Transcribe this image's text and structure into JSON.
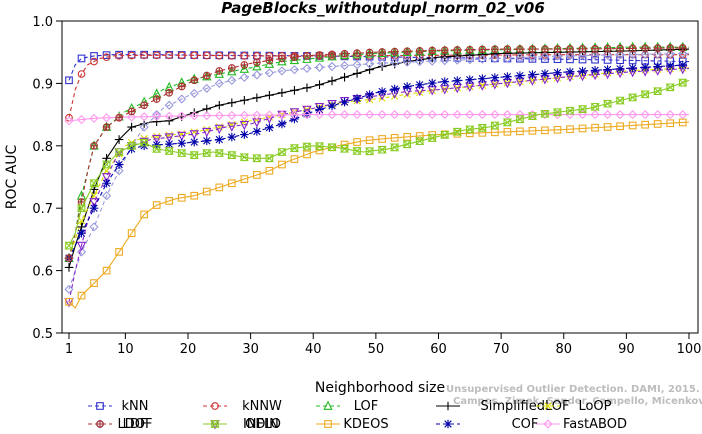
{
  "chart_data": {
    "type": "line",
    "title": "PageBlocks_withoutdupl_norm_02_v06",
    "xlabel": "Neighborhood size",
    "ylabel": "ROC AUC",
    "xlim": [
      1,
      100
    ],
    "ylim": [
      0.5,
      1.0
    ],
    "x_ticks": [
      1,
      10,
      20,
      30,
      40,
      50,
      60,
      70,
      80,
      90,
      100
    ],
    "y_ticks": [
      0.5,
      0.6,
      0.7,
      0.8,
      0.9,
      1.0
    ],
    "grid": false,
    "legend_position": "bottom",
    "credit": [
      "Unsupervised Outlier Detection. DAMI, 2015.",
      "Campos, Zimek, Sander, Campello, Micenkova, Schubert, Assent, Houle"
    ],
    "series": [
      {
        "name": "kNN",
        "color": "#3333cc",
        "marker": "square",
        "dash": "4,3",
        "points": [
          [
            1,
            0.905
          ],
          [
            2,
            0.93
          ],
          [
            3,
            0.94
          ],
          [
            5,
            0.944
          ],
          [
            8,
            0.946
          ],
          [
            15,
            0.946
          ],
          [
            25,
            0.945
          ],
          [
            40,
            0.944
          ],
          [
            55,
            0.942
          ],
          [
            70,
            0.94
          ],
          [
            85,
            0.938
          ],
          [
            100,
            0.935
          ]
        ]
      },
      {
        "name": "kNNW",
        "color": "#cc3333",
        "marker": "circle",
        "dash": "4,3",
        "points": [
          [
            1,
            0.845
          ],
          [
            2,
            0.89
          ],
          [
            3,
            0.915
          ],
          [
            4,
            0.93
          ],
          [
            6,
            0.94
          ],
          [
            8,
            0.944
          ],
          [
            12,
            0.945
          ],
          [
            20,
            0.945
          ],
          [
            30,
            0.944
          ],
          [
            45,
            0.944
          ],
          [
            60,
            0.945
          ],
          [
            80,
            0.946
          ],
          [
            100,
            0.946
          ]
        ]
      },
      {
        "name": "LOF",
        "color": "#22bb22",
        "marker": "triangle",
        "dash": "4,3",
        "points": [
          [
            1,
            0.62
          ],
          [
            2,
            0.66
          ],
          [
            3,
            0.72
          ],
          [
            4,
            0.76
          ],
          [
            5,
            0.8
          ],
          [
            7,
            0.83
          ],
          [
            10,
            0.855
          ],
          [
            13,
            0.87
          ],
          [
            16,
            0.89
          ],
          [
            20,
            0.905
          ],
          [
            25,
            0.915
          ],
          [
            30,
            0.925
          ],
          [
            35,
            0.935
          ],
          [
            40,
            0.94
          ],
          [
            45,
            0.945
          ],
          [
            50,
            0.948
          ],
          [
            60,
            0.952
          ],
          [
            70,
            0.954
          ],
          [
            80,
            0.956
          ],
          [
            90,
            0.958
          ],
          [
            100,
            0.958
          ]
        ]
      },
      {
        "name": "SimplifiedLOF",
        "color": "#000000",
        "marker": "plus",
        "dash": "",
        "points": [
          [
            1,
            0.605
          ],
          [
            2,
            0.64
          ],
          [
            3,
            0.67
          ],
          [
            4,
            0.7
          ],
          [
            5,
            0.73
          ],
          [
            7,
            0.78
          ],
          [
            9,
            0.81
          ],
          [
            11,
            0.83
          ],
          [
            14,
            0.838
          ],
          [
            17,
            0.84
          ],
          [
            20,
            0.85
          ],
          [
            25,
            0.865
          ],
          [
            30,
            0.875
          ],
          [
            35,
            0.885
          ],
          [
            40,
            0.895
          ],
          [
            45,
            0.91
          ],
          [
            50,
            0.925
          ],
          [
            55,
            0.935
          ],
          [
            60,
            0.942
          ],
          [
            70,
            0.948
          ],
          [
            80,
            0.95
          ],
          [
            90,
            0.952
          ],
          [
            100,
            0.955
          ]
        ]
      },
      {
        "name": "LoOP",
        "color": "#dddd00",
        "marker": "x",
        "dash": "4,3",
        "points": [
          [
            1,
            0.62
          ],
          [
            2,
            0.65
          ],
          [
            3,
            0.68
          ],
          [
            5,
            0.72
          ],
          [
            7,
            0.76
          ],
          [
            10,
            0.8
          ],
          [
            12,
            0.81
          ],
          [
            15,
            0.815
          ],
          [
            20,
            0.82
          ],
          [
            25,
            0.83
          ],
          [
            30,
            0.84
          ],
          [
            35,
            0.85
          ],
          [
            40,
            0.86
          ],
          [
            45,
            0.87
          ],
          [
            50,
            0.875
          ],
          [
            60,
            0.89
          ],
          [
            70,
            0.9
          ],
          [
            80,
            0.91
          ],
          [
            90,
            0.92
          ],
          [
            100,
            0.925
          ]
        ]
      },
      {
        "name": "LDOF",
        "color": "#9999dd",
        "marker": "diamond",
        "dash": "4,3",
        "points": [
          [
            1,
            0.57
          ],
          [
            2,
            0.6
          ],
          [
            3,
            0.63
          ],
          [
            5,
            0.67
          ],
          [
            7,
            0.72
          ],
          [
            9,
            0.76
          ],
          [
            11,
            0.8
          ],
          [
            13,
            0.83
          ],
          [
            16,
            0.86
          ],
          [
            20,
            0.88
          ],
          [
            25,
            0.9
          ],
          [
            30,
            0.912
          ],
          [
            35,
            0.92
          ],
          [
            40,
            0.925
          ],
          [
            50,
            0.932
          ],
          [
            60,
            0.936
          ],
          [
            70,
            0.94
          ],
          [
            80,
            0.944
          ],
          [
            90,
            0.946
          ],
          [
            100,
            0.948
          ]
        ]
      },
      {
        "name": "ODIN",
        "color": "#8822cc",
        "marker": "triangle-down",
        "dash": "4,3",
        "points": [
          [
            1,
            0.55
          ],
          [
            2,
            0.6
          ],
          [
            3,
            0.64
          ],
          [
            4,
            0.68
          ],
          [
            5,
            0.71
          ],
          [
            7,
            0.75
          ],
          [
            9,
            0.79
          ],
          [
            11,
            0.8
          ],
          [
            14,
            0.81
          ],
          [
            18,
            0.815
          ],
          [
            22,
            0.82
          ],
          [
            26,
            0.83
          ],
          [
            30,
            0.835
          ],
          [
            35,
            0.85
          ],
          [
            40,
            0.86
          ],
          [
            45,
            0.872
          ],
          [
            50,
            0.88
          ],
          [
            55,
            0.887
          ],
          [
            60,
            0.89
          ],
          [
            70,
            0.9
          ],
          [
            80,
            0.91
          ],
          [
            90,
            0.918
          ],
          [
            100,
            0.924
          ]
        ]
      },
      {
        "name": "KDEOS",
        "color": "#eeaa22",
        "marker": "square",
        "dash": "",
        "points": [
          [
            1,
            0.55
          ],
          [
            2,
            0.54
          ],
          [
            3,
            0.56
          ],
          [
            4,
            0.57
          ],
          [
            5,
            0.58
          ],
          [
            7,
            0.6
          ],
          [
            9,
            0.63
          ],
          [
            11,
            0.66
          ],
          [
            13,
            0.69
          ],
          [
            15,
            0.705
          ],
          [
            18,
            0.715
          ],
          [
            21,
            0.72
          ],
          [
            24,
            0.73
          ],
          [
            27,
            0.74
          ],
          [
            30,
            0.75
          ],
          [
            33,
            0.76
          ],
          [
            36,
            0.775
          ],
          [
            40,
            0.79
          ],
          [
            44,
            0.8
          ],
          [
            48,
            0.808
          ],
          [
            52,
            0.812
          ],
          [
            56,
            0.815
          ],
          [
            60,
            0.818
          ],
          [
            70,
            0.822
          ],
          [
            80,
            0.826
          ],
          [
            90,
            0.832
          ],
          [
            100,
            0.838
          ]
        ]
      },
      {
        "name": "COF",
        "color": "#0000aa",
        "marker": "star",
        "dash": "4,3",
        "points": [
          [
            1,
            0.62
          ],
          [
            2,
            0.64
          ],
          [
            3,
            0.66
          ],
          [
            4,
            0.68
          ],
          [
            5,
            0.7
          ],
          [
            7,
            0.74
          ],
          [
            9,
            0.77
          ],
          [
            11,
            0.795
          ],
          [
            13,
            0.8
          ],
          [
            16,
            0.802
          ],
          [
            20,
            0.805
          ],
          [
            25,
            0.81
          ],
          [
            30,
            0.82
          ],
          [
            35,
            0.835
          ],
          [
            40,
            0.855
          ],
          [
            45,
            0.87
          ],
          [
            50,
            0.885
          ],
          [
            55,
            0.895
          ],
          [
            60,
            0.902
          ],
          [
            70,
            0.91
          ],
          [
            80,
            0.918
          ],
          [
            90,
            0.924
          ],
          [
            100,
            0.93
          ]
        ]
      },
      {
        "name": "FastABOD",
        "color": "#ff99ee",
        "marker": "diamond",
        "dash": "",
        "points": [
          [
            1,
            0.84
          ],
          [
            3,
            0.842
          ],
          [
            5,
            0.844
          ],
          [
            10,
            0.846
          ],
          [
            20,
            0.848
          ],
          [
            30,
            0.849
          ],
          [
            40,
            0.85
          ],
          [
            50,
            0.85
          ],
          [
            60,
            0.85
          ],
          [
            70,
            0.85
          ],
          [
            80,
            0.85
          ],
          [
            90,
            0.85
          ],
          [
            100,
            0.85
          ]
        ]
      },
      {
        "name": "LDF",
        "color": "#aa3333",
        "marker": "circle-plus",
        "dash": "4,3",
        "points": [
          [
            1,
            0.62
          ],
          [
            2,
            0.66
          ],
          [
            3,
            0.71
          ],
          [
            4,
            0.76
          ],
          [
            5,
            0.8
          ],
          [
            7,
            0.83
          ],
          [
            9,
            0.845
          ],
          [
            12,
            0.86
          ],
          [
            15,
            0.875
          ],
          [
            18,
            0.89
          ],
          [
            21,
            0.905
          ],
          [
            25,
            0.92
          ],
          [
            30,
            0.932
          ],
          [
            35,
            0.94
          ],
          [
            40,
            0.945
          ],
          [
            50,
            0.95
          ],
          [
            60,
            0.953
          ],
          [
            70,
            0.955
          ],
          [
            80,
            0.955
          ],
          [
            90,
            0.956
          ],
          [
            100,
            0.957
          ]
        ]
      },
      {
        "name": "INFLO",
        "color": "#88cc22",
        "marker": "hourglass",
        "dash": "",
        "points": [
          [
            1,
            0.64
          ],
          [
            2,
            0.66
          ],
          [
            3,
            0.7
          ],
          [
            5,
            0.74
          ],
          [
            7,
            0.77
          ],
          [
            9,
            0.79
          ],
          [
            11,
            0.8
          ],
          [
            13,
            0.805
          ],
          [
            15,
            0.795
          ],
          [
            18,
            0.79
          ],
          [
            21,
            0.785
          ],
          [
            24,
            0.79
          ],
          [
            27,
            0.785
          ],
          [
            30,
            0.78
          ],
          [
            33,
            0.78
          ],
          [
            36,
            0.795
          ],
          [
            40,
            0.8
          ],
          [
            44,
            0.797
          ],
          [
            48,
            0.79
          ],
          [
            52,
            0.795
          ],
          [
            56,
            0.805
          ],
          [
            60,
            0.815
          ],
          [
            64,
            0.825
          ],
          [
            68,
            0.83
          ],
          [
            72,
            0.84
          ],
          [
            76,
            0.85
          ],
          [
            80,
            0.855
          ],
          [
            84,
            0.86
          ],
          [
            88,
            0.87
          ],
          [
            92,
            0.88
          ],
          [
            96,
            0.89
          ],
          [
            100,
            0.905
          ]
        ]
      }
    ]
  }
}
